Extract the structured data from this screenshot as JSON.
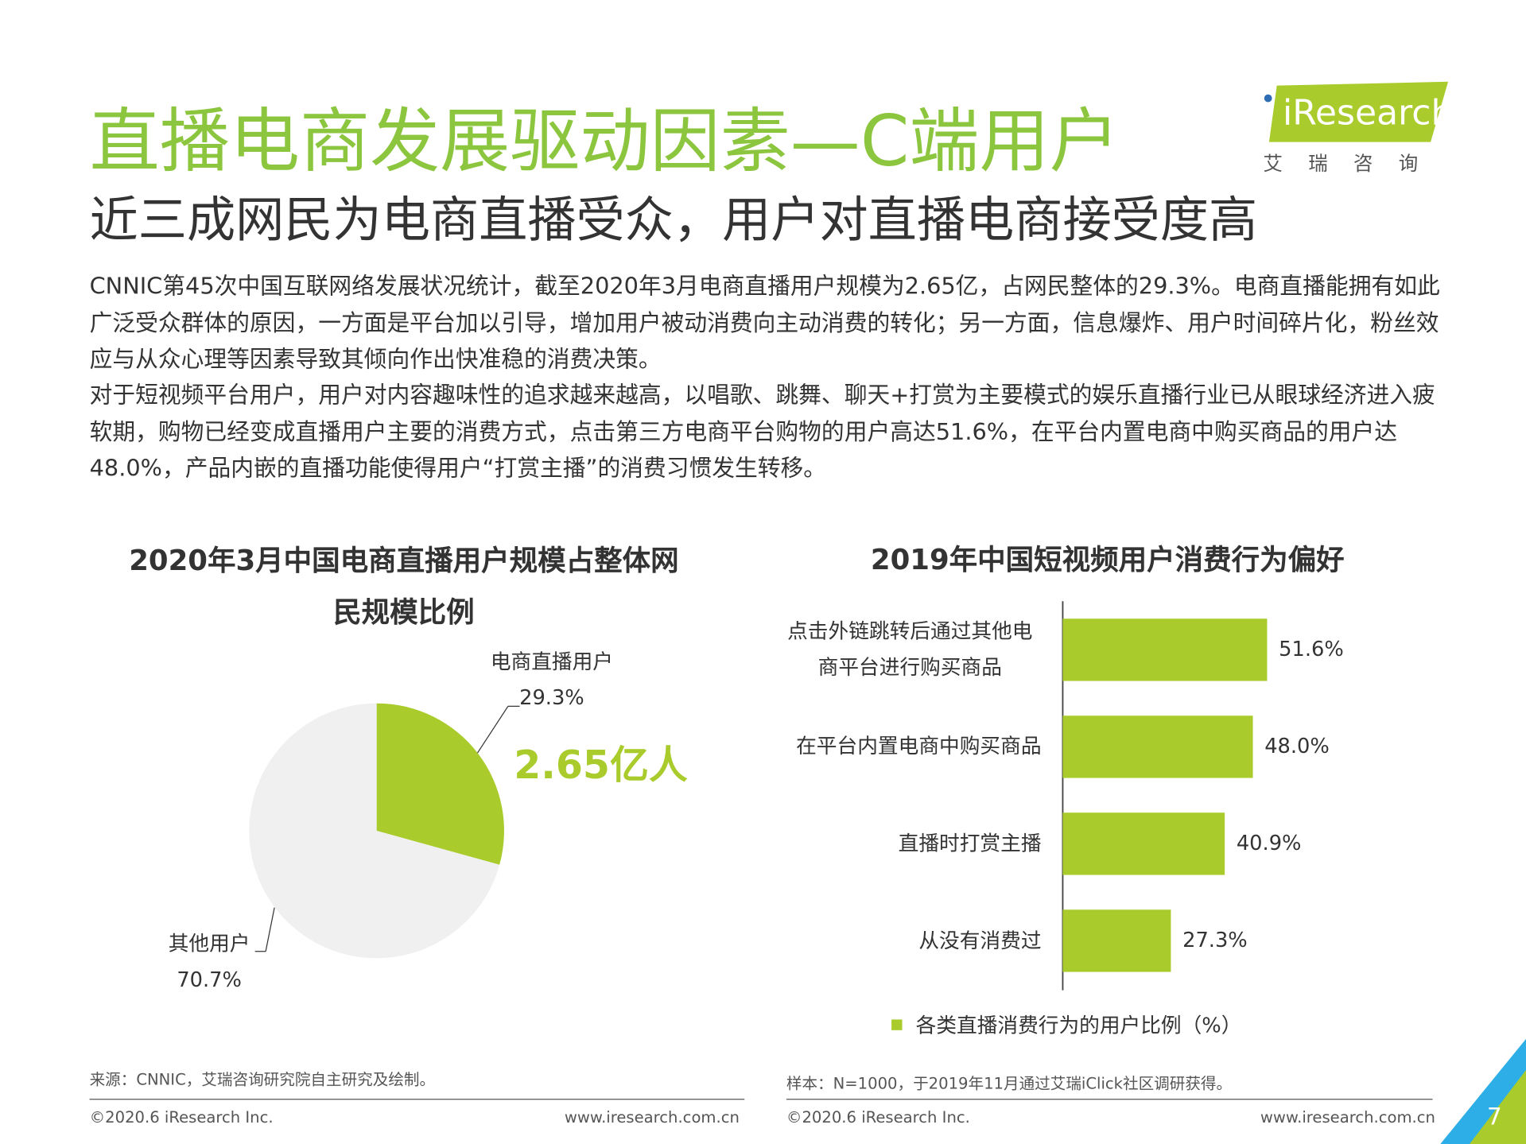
{
  "header": {
    "title": "直播电商发展驱动因素—C端用户",
    "subtitle": "近三成网民为电商直播受众，用户对直播电商接受度高",
    "logo": "iResearch",
    "logo_cn": "艾 瑞 咨 询"
  },
  "body": [
    "CNNIC第45次中国互联网络发展状况统计，截至2020年3月电商直播用户规模为2.65亿，占网民整体的29.3%。电商直播能拥有如此广泛受众群体的原因，一方面是平台加以引导，增加用户被动消费向主动消费的转化；另一方面，信息爆炸、用户时间碎片化，粉丝效应与从众心理等因素导致其倾向作出快准稳的消费决策。",
    "对于短视频平台用户，用户对内容趣味性的追求越来越高，以唱歌、跳舞、聊天+打赏为主要模式的娱乐直播行业已从眼球经济进入疲软期，购物已经变成直播用户主要的消费方式，点击第三方电商平台购物的用户高达51.6%，在平台内置电商中购买商品的用户达48.0%，产品内嵌的直播功能使得用户“打赏主播”的消费习惯发生转移。"
  ],
  "chart_data": [
    {
      "type": "pie",
      "title": "2020年3月中国电商直播用户规模占整体网民规模比例",
      "categories": [
        "电商直播用户",
        "其他用户"
      ],
      "values": [
        29.3,
        70.7
      ],
      "value_labels": [
        "29.3%",
        "70.7%"
      ],
      "colors": [
        "#a9cc2c",
        "#f0f0f0"
      ],
      "annotation": "2.65亿人"
    },
    {
      "type": "hbar",
      "title": "2019年中国短视频用户消费行为偏好",
      "categories": [
        "点击外链跳转后通过其他电商平台进行购买商品",
        "在平台内置电商中购买商品",
        "直播时打赏主播",
        "从没有消费过"
      ],
      "series": [
        {
          "name": "各类直播消费行为的用户比例（%）",
          "color": "#a9cc2c",
          "values": [
            51.6,
            48.0,
            40.9,
            27.3
          ],
          "value_labels": [
            "51.6%",
            "48.0%",
            "40.9%",
            "27.3%"
          ]
        }
      ]
    }
  ],
  "sources": [
    "来源：CNNIC，艾瑞咨询研究院自主研究及绘制。",
    "样本：N=1000，于2019年11月通过艾瑞iClick社区调研获得。"
  ],
  "footer": {
    "left": [
      "©2020.6 iResearch Inc.",
      "www.iresearch.com.cn"
    ],
    "right": [
      "©2020.6 iResearch Inc.",
      "www.iresearch.com.cn"
    ],
    "page": "7"
  }
}
